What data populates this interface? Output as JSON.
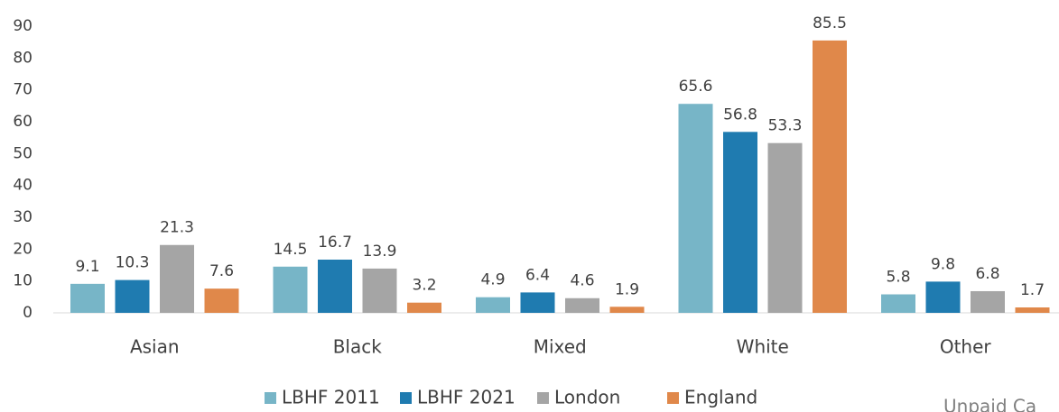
{
  "chart_data": {
    "type": "bar",
    "categories": [
      "Asian",
      "Black",
      "Mixed",
      "White",
      "Other"
    ],
    "series": [
      {
        "name": "LBHF 2011",
        "color": "#77b5c7",
        "values": [
          9.1,
          14.5,
          4.9,
          65.6,
          5.8
        ]
      },
      {
        "name": "LBHF 2021",
        "color": "#1f7bb0",
        "values": [
          10.3,
          16.7,
          6.4,
          56.8,
          9.8
        ]
      },
      {
        "name": "London",
        "color": "#a5a5a5",
        "values": [
          21.3,
          13.9,
          4.6,
          53.3,
          6.8
        ]
      },
      {
        "name": "England",
        "color": "#e0884a",
        "values": [
          7.6,
          3.2,
          1.9,
          85.5,
          1.7
        ]
      }
    ],
    "ylim": [
      0,
      90
    ],
    "yticks": [
      0,
      10,
      20,
      30,
      40,
      50,
      60,
      70,
      80,
      90
    ],
    "grid": false,
    "legend": "bottom",
    "annotation": "Unpaid Ca"
  }
}
